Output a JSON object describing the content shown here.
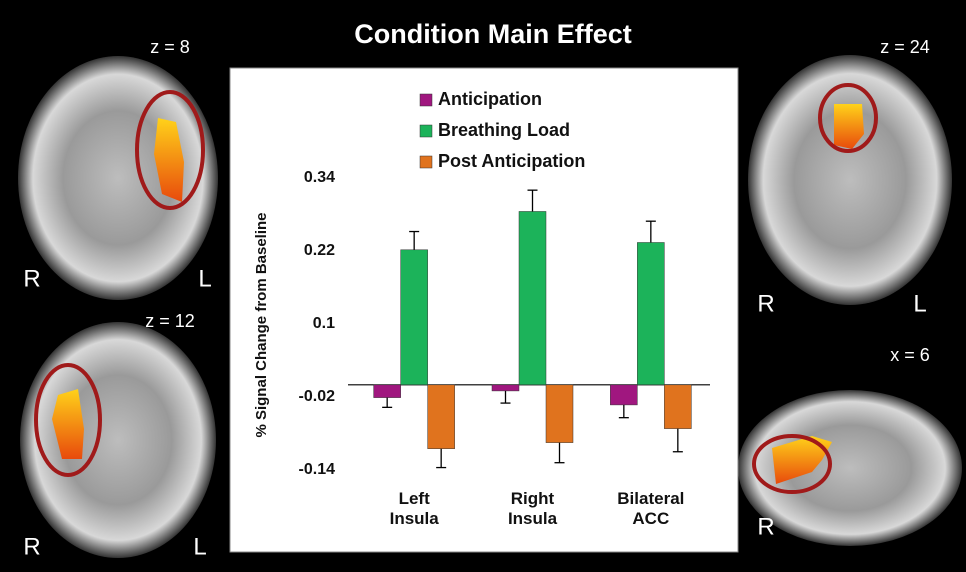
{
  "chart_data": {
    "type": "bar",
    "title": "Condition Main Effect",
    "y_label": "% Signal Change from Baseline",
    "categories": [
      "Left Insula",
      "Right Insula",
      "Bilateral ACC"
    ],
    "series": [
      {
        "name": "Anticipation",
        "color": "#a0177f",
        "values": [
          -0.021,
          -0.01,
          -0.033
        ],
        "errors": [
          0.016,
          0.02,
          0.021
        ]
      },
      {
        "name": "Breathing Load",
        "color": "#1cb35a",
        "values": [
          0.222,
          0.285,
          0.234
        ],
        "errors": [
          0.03,
          0.035,
          0.035
        ]
      },
      {
        "name": "Post Anticipation",
        "color": "#e0731e",
        "values": [
          -0.105,
          -0.095,
          -0.072
        ],
        "errors": [
          0.031,
          0.033,
          0.038
        ]
      }
    ],
    "ylim": [
      -0.14,
      0.34
    ],
    "yticks": [
      -0.14,
      -0.02,
      0.1,
      0.22,
      0.34
    ],
    "grid": false
  },
  "panels": [
    {
      "slice": "z = 8",
      "left": "R",
      "right": "L"
    },
    {
      "slice": "z = 12",
      "left": "R",
      "right": "L"
    },
    {
      "slice": "z = 24",
      "left": "R",
      "right": "L"
    },
    {
      "slice": "x = 6",
      "left": "R"
    }
  ]
}
